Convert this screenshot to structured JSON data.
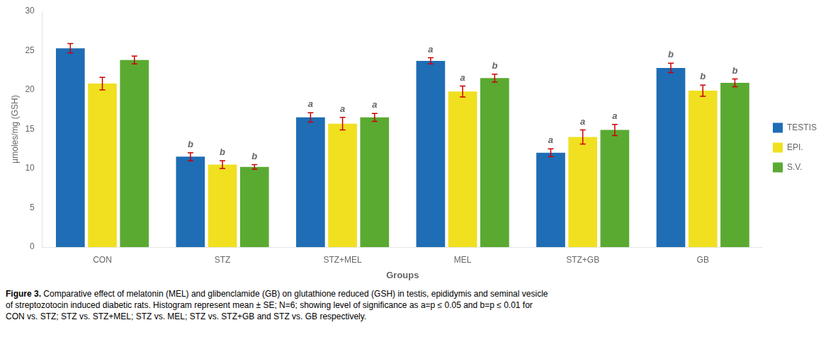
{
  "chart_data": {
    "type": "bar",
    "categories": [
      "CON",
      "STZ",
      "STZ+MEL",
      "MEL",
      "STZ+GB",
      "GB"
    ],
    "series": [
      {
        "name": "TESTIS",
        "color": "#1F6DB5",
        "values": [
          25.3,
          11.5,
          16.5,
          23.7,
          12.0,
          22.8
        ],
        "errors": [
          0.6,
          0.5,
          0.6,
          0.4,
          0.5,
          0.6
        ],
        "annotations": [
          null,
          "b",
          "a",
          "a",
          "a",
          "b"
        ]
      },
      {
        "name": "EPI.",
        "color": "#F0E020",
        "values": [
          20.8,
          10.5,
          15.7,
          19.8,
          14.0,
          19.9
        ],
        "errors": [
          0.8,
          0.5,
          0.8,
          0.7,
          0.9,
          0.7
        ],
        "annotations": [
          null,
          "b",
          "a",
          "a",
          "a",
          "b"
        ]
      },
      {
        "name": "S.V.",
        "color": "#5AAA32",
        "values": [
          23.8,
          10.2,
          16.5,
          21.5,
          14.9,
          20.9
        ],
        "errors": [
          0.5,
          0.3,
          0.5,
          0.5,
          0.7,
          0.5
        ],
        "annotations": [
          null,
          "b",
          "a",
          "b",
          "a",
          "b"
        ]
      }
    ],
    "error_color": "#CC0000",
    "xlabel": "Groups",
    "ylabel": "µmoles/mg (GSH)",
    "ylim": [
      0,
      30
    ],
    "yticks": [
      0,
      5,
      10,
      15,
      20,
      25,
      30
    ],
    "grid": false,
    "legend": "right",
    "caption_title": "Figure 3.",
    "caption": [
      "Comparative effect of melatonin (MEL) and glibenclamide (GB) on glutathione reduced (GSH) in testis, epididymis and seminal vesicle",
      "of streptozotocin induced diabetic rats. Histogram represent mean ± SE; N=6; showing level of significance as a=p ≤ 0.05 and b=p ≤ 0.01 for",
      "CON vs. STZ; STZ vs. STZ+MEL; STZ vs. MEL; STZ vs. STZ+GB and STZ vs. GB respectively."
    ]
  }
}
